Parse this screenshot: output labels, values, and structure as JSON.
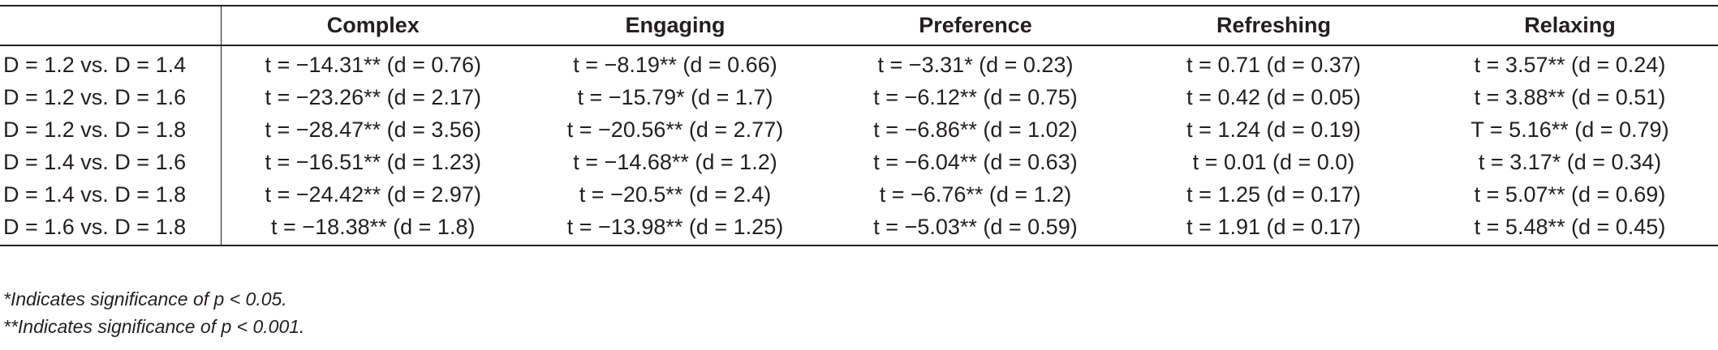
{
  "table": {
    "columns": [
      "",
      "Complex",
      "Engaging",
      "Preference",
      "Refreshing",
      "Relaxing"
    ],
    "rows": [
      {
        "label": "D = 1.2 vs. D = 1.4",
        "cells": [
          "t = −14.31** (d = 0.76)",
          "t = −8.19** (d = 0.66)",
          "t = −3.31* (d = 0.23)",
          "t = 0.71 (d = 0.37)",
          "t = 3.57** (d = 0.24)"
        ]
      },
      {
        "label": "D = 1.2 vs. D = 1.6",
        "cells": [
          "t = −23.26** (d = 2.17)",
          "t = −15.79* (d = 1.7)",
          "t = −6.12** (d = 0.75)",
          "t = 0.42 (d = 0.05)",
          "t = 3.88** (d = 0.51)"
        ]
      },
      {
        "label": "D = 1.2 vs. D = 1.8",
        "cells": [
          "t = −28.47** (d = 3.56)",
          "t = −20.56** (d = 2.77)",
          "t = −6.86** (d = 1.02)",
          "t = 1.24 (d = 0.19)",
          "T = 5.16** (d = 0.79)"
        ]
      },
      {
        "label": "D = 1.4 vs. D = 1.6",
        "cells": [
          "t = −16.51** (d = 1.23)",
          "t = −14.68** (d = 1.2)",
          "t = −6.04** (d = 0.63)",
          "t = 0.01 (d = 0.0)",
          "t = 3.17* (d = 0.34)"
        ]
      },
      {
        "label": "D = 1.4 vs. D = 1.8",
        "cells": [
          "t = −24.42** (d = 2.97)",
          "t = −20.5** (d = 2.4)",
          "t = −6.76** (d = 1.2)",
          "t = 1.25 (d = 0.17)",
          "t = 5.07** (d = 0.69)"
        ]
      },
      {
        "label": "D = 1.6 vs. D = 1.8",
        "cells": [
          "t = −18.38** (d = 1.8)",
          "t = −13.98** (d = 1.25)",
          "t = −5.03** (d = 0.59)",
          "t = 1.91 (d = 0.17)",
          "t = 5.48** (d = 0.45)"
        ]
      }
    ]
  },
  "footnotes": [
    "*Indicates significance of p < 0.05.",
    "**Indicates significance of p < 0.001."
  ]
}
